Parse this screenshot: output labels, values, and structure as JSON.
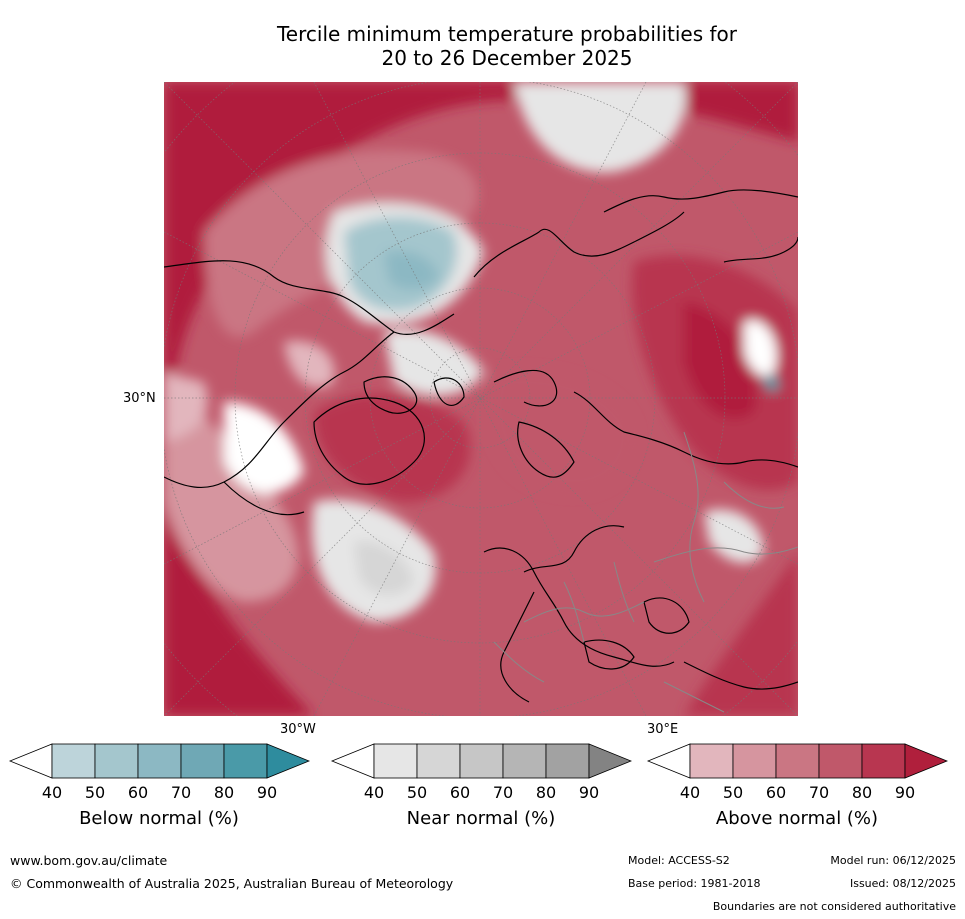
{
  "title": {
    "line1": "Tercile minimum temperature probabilities for",
    "line2": "20 to 26 December 2025"
  },
  "map": {
    "projection": "north-polar-stereographic",
    "labels": {
      "lat": "30°N",
      "lon_west": "30°W",
      "lon_east": "30°E"
    }
  },
  "colorbars": [
    {
      "name": "below",
      "caption": "Below normal (%)",
      "ticks": [
        "40",
        "50",
        "60",
        "70",
        "80",
        "90"
      ],
      "colors": [
        "#ffffff",
        "#bdd4da",
        "#a4c6cd",
        "#8cb8c3",
        "#6fa8b5",
        "#4a9aa8",
        "#2e8c9e"
      ]
    },
    {
      "name": "near",
      "caption": "Near normal (%)",
      "ticks": [
        "40",
        "50",
        "60",
        "70",
        "80",
        "90"
      ],
      "colors": [
        "#ffffff",
        "#e6e6e6",
        "#d6d6d6",
        "#c6c6c6",
        "#b5b5b5",
        "#a2a2a2",
        "#838383"
      ]
    },
    {
      "name": "above",
      "caption": "Above normal (%)",
      "ticks": [
        "40",
        "50",
        "60",
        "70",
        "80",
        "90"
      ],
      "colors": [
        "#ffffff",
        "#e2b6bd",
        "#d6959f",
        "#ca7683",
        "#c0586a",
        "#b83650",
        "#b01f3c"
      ]
    }
  ],
  "footer": {
    "url": "www.bom.gov.au/climate",
    "copyright": "© Commonwealth of Australia 2025, Australian Bureau of Meteorology",
    "model": "Model: ACCESS-S2",
    "model_run": "Model run: 06/12/2025",
    "base_period": "Base period: 1981-2018",
    "issued": "Issued: 08/12/2025",
    "disclaimer": "Boundaries are not considered authoritative"
  }
}
